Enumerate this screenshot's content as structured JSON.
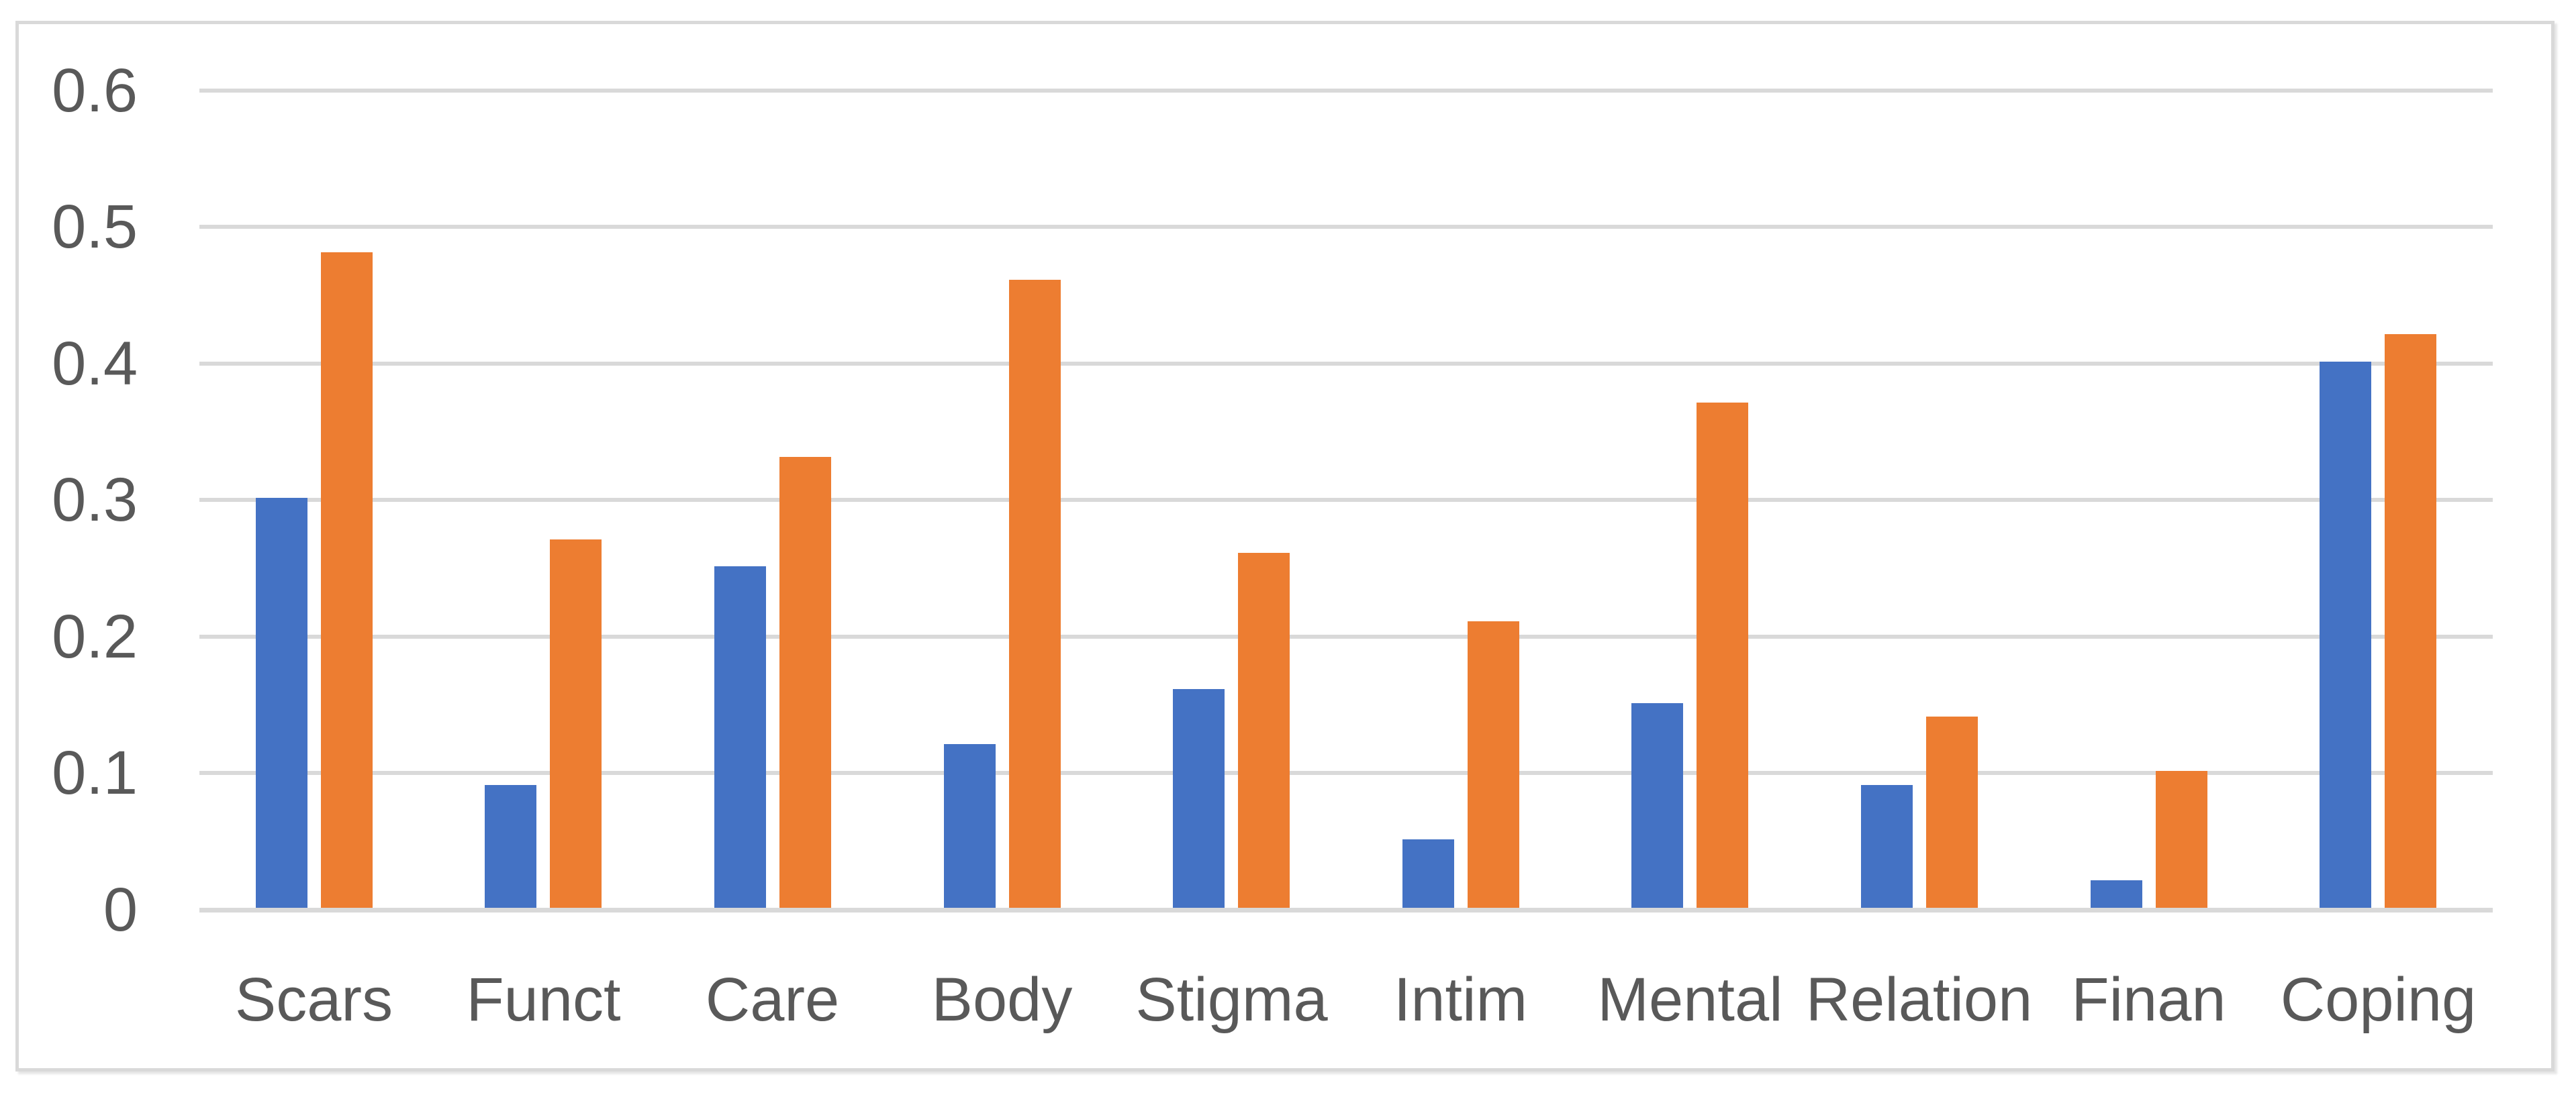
{
  "chart_data": {
    "type": "bar",
    "categories": [
      "Scars",
      "Funct",
      "Care",
      "Body",
      "Stigma",
      "Intim",
      "Mental",
      "Relation",
      "Finan",
      "Coping"
    ],
    "series": [
      {
        "name": "blue",
        "color": "#4472C4",
        "values": [
          0.3,
          0.09,
          0.25,
          0.12,
          0.16,
          0.05,
          0.15,
          0.09,
          0.02,
          0.4
        ]
      },
      {
        "name": "orange",
        "color": "#ED7D31",
        "values": [
          0.48,
          0.27,
          0.33,
          0.46,
          0.26,
          0.21,
          0.37,
          0.14,
          0.1,
          0.42
        ]
      }
    ],
    "title": "",
    "xlabel": "",
    "ylabel": "",
    "ylim": [
      0,
      0.6
    ],
    "yticks": [
      {
        "label": "0.6",
        "value": 0.6
      },
      {
        "label": "0.5",
        "value": 0.5
      },
      {
        "label": "0.4",
        "value": 0.4
      },
      {
        "label": "0.3",
        "value": 0.3
      },
      {
        "label": "0.2",
        "value": 0.2
      },
      {
        "label": "0.1",
        "value": 0.1
      },
      {
        "label": "0",
        "value": 0.0
      }
    ],
    "grid": "horizontal",
    "legend_position": "none",
    "colors": {
      "gridline": "#D9D9D9",
      "axis_line": "#D9D9D9",
      "tick_label": "#595959",
      "frame_border": "#D9D9D9",
      "background": "#FFFFFF"
    }
  }
}
